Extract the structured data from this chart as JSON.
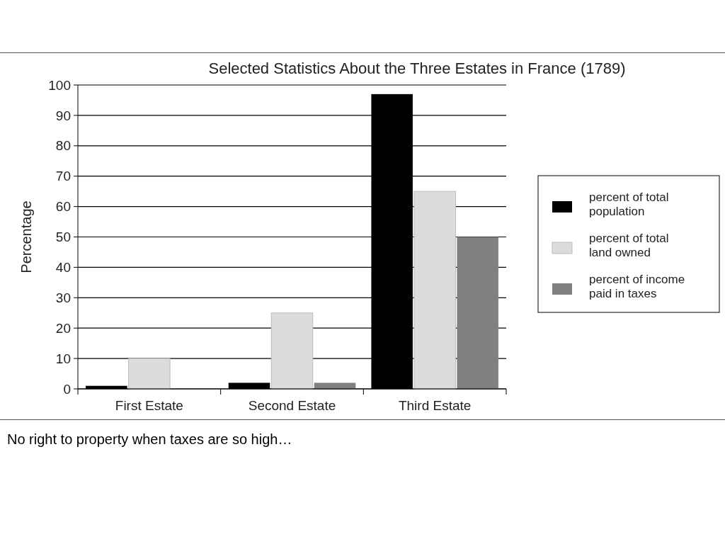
{
  "chart_data": {
    "type": "bar",
    "title": "Selected Statistics About the Three Estates in France (1789)",
    "ylabel": "Percentage",
    "categories": [
      "First Estate",
      "Second Estate",
      "Third Estate"
    ],
    "series": [
      {
        "name": "percent of total population",
        "color": "#000000",
        "values": [
          1,
          2,
          97
        ]
      },
      {
        "name": "percent of total land owned",
        "color": "#dcdcdc",
        "values": [
          10,
          25,
          65
        ]
      },
      {
        "name": "percent of income paid in taxes",
        "color": "#808080",
        "values": [
          null,
          2,
          50
        ]
      }
    ],
    "ylim": [
      0,
      100
    ],
    "yticks": [
      0,
      10,
      20,
      30,
      40,
      50,
      60,
      70,
      80,
      90,
      100
    ],
    "grid": "y",
    "legend": "right",
    "annotations": [
      "No right to property when taxes are so high…"
    ]
  }
}
